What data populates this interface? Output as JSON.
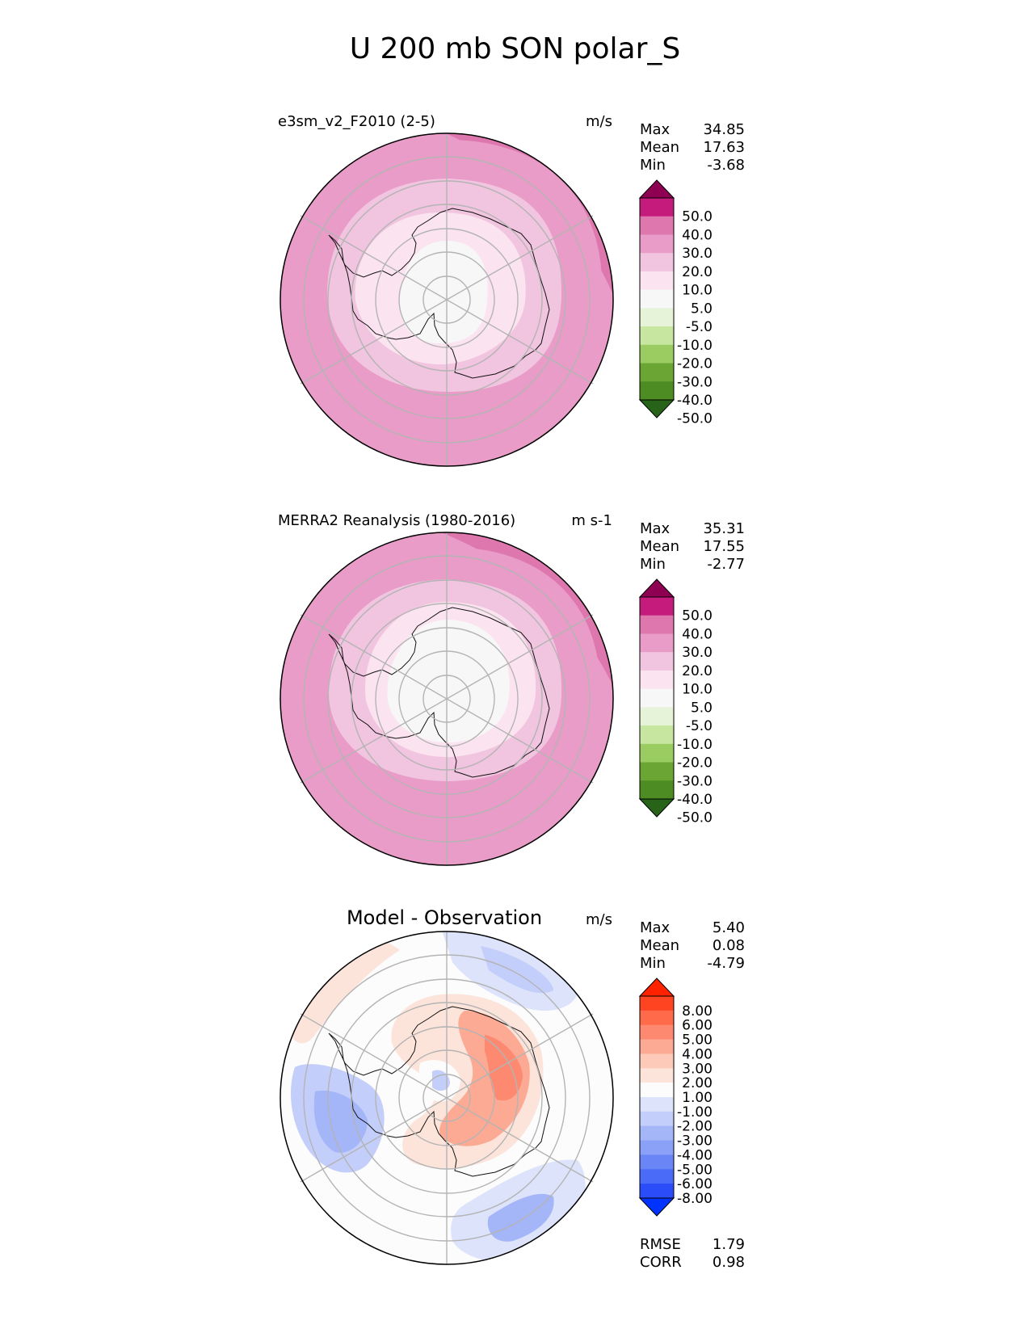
{
  "figure": {
    "title": "U 200 mb SON polar_S"
  },
  "panels": [
    {
      "title": "e3sm_v2_F2010 (2-5)",
      "units": "m/s",
      "stats": [
        {
          "label": "Max",
          "value": "34.85"
        },
        {
          "label": "Mean",
          "value": "17.63"
        },
        {
          "label": "Min",
          "value": "-3.68"
        }
      ]
    },
    {
      "title": "MERRA2 Reanalysis (1980-2016)",
      "units": "m s-1",
      "stats": [
        {
          "label": "Max",
          "value": "35.31"
        },
        {
          "label": "Mean",
          "value": "17.55"
        },
        {
          "label": "Min",
          "value": "-2.77"
        }
      ]
    },
    {
      "title": "Model - Observation",
      "units": "m/s",
      "stats": [
        {
          "label": "Max",
          "value": "5.40"
        },
        {
          "label": "Mean",
          "value": "0.08"
        },
        {
          "label": "Min",
          "value": "-4.79"
        }
      ],
      "footer": [
        {
          "label": "RMSE",
          "value": "1.79"
        },
        {
          "label": "CORR",
          "value": "0.98"
        }
      ]
    }
  ],
  "chart_data": [
    {
      "type": "heatmap",
      "title": "e3sm_v2_F2010 (2-5)",
      "units": "m/s",
      "colorbar": {
        "ticks": [
          "50.0",
          "40.0",
          "30.0",
          "20.0",
          "10.0",
          "5.0",
          "-5.0",
          "-10.0",
          "-20.0",
          "-30.0",
          "-40.0",
          "-50.0"
        ],
        "colors": [
          "#8e0152",
          "#c51b7d",
          "#de77ae",
          "#e89cc7",
          "#f1c4df",
          "#fbe4ef",
          "#f7f7f7",
          "#e6f3d9",
          "#c7e6a0",
          "#9bcc62",
          "#6ba533",
          "#4d8c23",
          "#276419"
        ]
      },
      "zonal_bands": [
        {
          "ring": "outer",
          "value_range": [
            20,
            30
          ]
        },
        {
          "ring": "middle",
          "value_range": [
            10,
            20
          ]
        },
        {
          "ring": "inner",
          "value_range": [
            5,
            10
          ]
        },
        {
          "ring": "pole",
          "value_range": [
            -5,
            5
          ]
        }
      ]
    },
    {
      "type": "heatmap",
      "title": "MERRA2 Reanalysis (1980-2016)",
      "units": "m s-1",
      "colorbar": {
        "ticks": [
          "50.0",
          "40.0",
          "30.0",
          "20.0",
          "10.0",
          "5.0",
          "-5.0",
          "-10.0",
          "-20.0",
          "-30.0",
          "-40.0",
          "-50.0"
        ],
        "colors": [
          "#8e0152",
          "#c51b7d",
          "#de77ae",
          "#e89cc7",
          "#f1c4df",
          "#fbe4ef",
          "#f7f7f7",
          "#e6f3d9",
          "#c7e6a0",
          "#9bcc62",
          "#6ba533",
          "#4d8c23",
          "#276419"
        ]
      },
      "zonal_bands": [
        {
          "ring": "outer",
          "value_range": [
            20,
            30
          ]
        },
        {
          "ring": "middle",
          "value_range": [
            10,
            20
          ]
        },
        {
          "ring": "inner",
          "value_range": [
            5,
            10
          ]
        },
        {
          "ring": "pole",
          "value_range": [
            -5,
            5
          ]
        }
      ]
    },
    {
      "type": "heatmap",
      "title": "Model - Observation",
      "units": "m/s",
      "colorbar": {
        "ticks": [
          "8.00",
          "6.00",
          "5.00",
          "4.00",
          "3.00",
          "2.00",
          "1.00",
          "-1.00",
          "-2.00",
          "-3.00",
          "-4.00",
          "-5.00",
          "-6.00",
          "-8.00"
        ],
        "colors": [
          "#ff2200",
          "#ff4422",
          "#fe6a4a",
          "#fd8a70",
          "#fcaa94",
          "#fdc9b8",
          "#fde4da",
          "#fcfcfc",
          "#dde3fb",
          "#c3cefa",
          "#a4b5f8",
          "#8aa1f7",
          "#6a86f6",
          "#4a6af8",
          "#2a4df9",
          "#0033ff"
        ]
      },
      "rmse": 1.79,
      "corr": 0.98
    }
  ]
}
